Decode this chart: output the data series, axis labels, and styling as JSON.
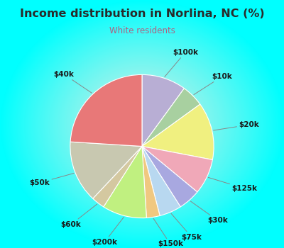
{
  "title": "Income distribution in Norlina, NC (%)",
  "subtitle": "White residents",
  "labels": [
    "$100k",
    "$10k",
    "$20k",
    "$125k",
    "$30k",
    "$75k",
    "$150k",
    "$200k",
    "$60k",
    "$50k",
    "$40k"
  ],
  "values": [
    10,
    5,
    13,
    8,
    5,
    5,
    3,
    10,
    3,
    14,
    24
  ],
  "colors": [
    "#b8aed4",
    "#a8d0a0",
    "#f0f080",
    "#f0a8b8",
    "#a8a8e0",
    "#b8d8f0",
    "#f0c880",
    "#c0f080",
    "#d4c8a0",
    "#c8c8b0",
    "#e87878"
  ],
  "bg_gradient_outer": [
    0,
    1,
    1
  ],
  "bg_gradient_inner": [
    0.82,
    0.94,
    0.9
  ],
  "title_color": "#2a2a2a",
  "subtitle_color": "#b06080",
  "label_fontsize": 7.5,
  "title_fontsize": 11.5
}
